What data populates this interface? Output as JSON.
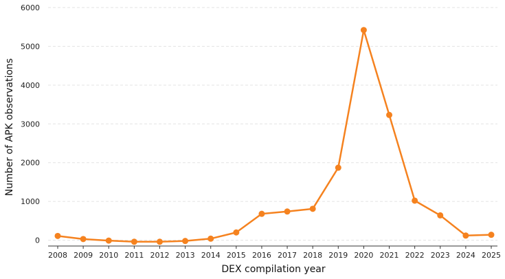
{
  "chart_data": {
    "type": "line",
    "title": "",
    "xlabel": "DEX compilation year",
    "ylabel": "Number of APK observations",
    "x": [
      "2008",
      "2009",
      "2010",
      "2011",
      "2012",
      "2013",
      "2014",
      "2015",
      "2016",
      "2017",
      "2018",
      "2019",
      "2020",
      "2021",
      "2022",
      "2023",
      "2024",
      "2025"
    ],
    "series": [
      {
        "values": [
          110,
          30,
          -10,
          -40,
          -40,
          -20,
          40,
          200,
          680,
          740,
          810,
          1870,
          5420,
          3230,
          1020,
          640,
          120,
          140
        ],
        "color": "#f5821f"
      }
    ],
    "ylim": [
      -150,
      6000
    ],
    "yticks": [
      0,
      1000,
      2000,
      3000,
      4000,
      5000,
      6000
    ],
    "grid": true,
    "legend": "none"
  }
}
